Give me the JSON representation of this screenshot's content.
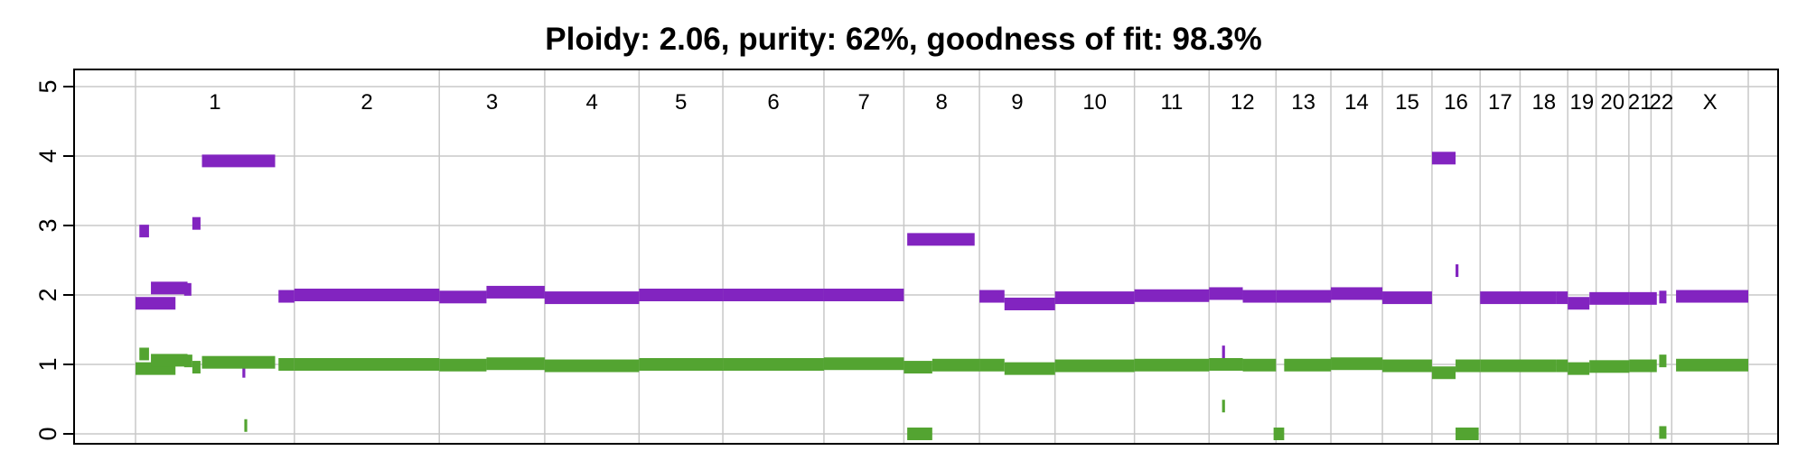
{
  "chart_data": {
    "type": "segment-plot",
    "title": "Ploidy: 2.06, purity: 62%, goodness of fit: 98.3%",
    "xlabel": "",
    "ylabel": "",
    "ylim": [
      0,
      5
    ],
    "yticks": [
      "0",
      "1",
      "2",
      "3",
      "4",
      "5"
    ],
    "grid": true,
    "colors": {
      "total": "#8224c0",
      "minor": "#53a431",
      "grid": "#c8c8c8",
      "axis": "#000000"
    },
    "chromosomes": [
      {
        "name": "1",
        "start": 0,
        "end": 3.3
      },
      {
        "name": "2",
        "start": 3.3,
        "end": 6.31
      },
      {
        "name": "3",
        "start": 6.31,
        "end": 8.5
      },
      {
        "name": "4",
        "start": 8.5,
        "end": 10.46
      },
      {
        "name": "5",
        "start": 10.46,
        "end": 12.2
      },
      {
        "name": "6",
        "start": 12.2,
        "end": 14.3
      },
      {
        "name": "7",
        "start": 14.3,
        "end": 15.96
      },
      {
        "name": "8",
        "start": 15.96,
        "end": 17.53
      },
      {
        "name": "9",
        "start": 17.53,
        "end": 19.1
      },
      {
        "name": "10",
        "start": 19.1,
        "end": 20.75
      },
      {
        "name": "11",
        "start": 20.75,
        "end": 22.3
      },
      {
        "name": "12",
        "start": 22.3,
        "end": 23.69
      },
      {
        "name": "13",
        "start": 23.69,
        "end": 24.83
      },
      {
        "name": "14",
        "start": 24.83,
        "end": 25.9
      },
      {
        "name": "15",
        "start": 25.9,
        "end": 26.93
      },
      {
        "name": "16",
        "start": 26.93,
        "end": 27.93
      },
      {
        "name": "17",
        "start": 27.93,
        "end": 28.76
      },
      {
        "name": "18",
        "start": 28.76,
        "end": 29.75
      },
      {
        "name": "19",
        "start": 29.75,
        "end": 30.34
      },
      {
        "name": "20",
        "start": 30.34,
        "end": 31.02
      },
      {
        "name": "21",
        "start": 31.02,
        "end": 31.48
      },
      {
        "name": "22",
        "start": 31.48,
        "end": 31.91
      },
      {
        "name": "X",
        "start": 31.91,
        "end": 33.5
      }
    ],
    "series": [
      {
        "key": "total",
        "segments": [
          [
            0.0,
            0.83,
            1.88
          ],
          [
            0.08,
            0.28,
            2.92
          ],
          [
            0.32,
            1.08,
            2.1
          ],
          [
            1.01,
            1.16,
            2.08
          ],
          [
            1.18,
            1.35,
            3.03
          ],
          [
            1.38,
            2.9,
            3.93
          ],
          [
            2.22,
            2.28,
            0.9
          ],
          [
            2.97,
            3.3,
            1.98
          ],
          [
            3.3,
            6.31,
            2.0
          ],
          [
            6.31,
            7.29,
            1.97
          ],
          [
            7.29,
            8.5,
            2.04
          ],
          [
            8.5,
            10.46,
            1.96
          ],
          [
            10.46,
            12.2,
            2.0
          ],
          [
            12.2,
            14.3,
            2.0
          ],
          [
            14.3,
            15.96,
            2.0
          ],
          [
            16.03,
            17.43,
            2.8
          ],
          [
            17.53,
            18.05,
            1.98
          ],
          [
            18.05,
            19.1,
            1.87
          ],
          [
            19.1,
            20.75,
            1.96
          ],
          [
            20.75,
            22.3,
            1.99
          ],
          [
            22.3,
            23.0,
            2.02
          ],
          [
            22.57,
            22.63,
            1.18
          ],
          [
            23.0,
            23.69,
            1.98
          ],
          [
            23.69,
            24.83,
            1.98
          ],
          [
            24.83,
            25.9,
            2.02
          ],
          [
            25.9,
            26.93,
            1.96
          ],
          [
            26.93,
            27.42,
            3.97
          ],
          [
            27.42,
            27.48,
            2.35
          ],
          [
            27.93,
            29.51,
            1.96
          ],
          [
            29.51,
            29.75,
            1.96
          ],
          [
            29.75,
            30.2,
            1.88
          ],
          [
            30.2,
            31.03,
            1.95
          ],
          [
            31.03,
            31.6,
            1.95
          ],
          [
            31.65,
            31.8,
            1.97
          ],
          [
            32.0,
            33.5,
            1.98
          ]
        ]
      },
      {
        "key": "minor",
        "segments": [
          [
            0.0,
            0.83,
            0.94
          ],
          [
            0.08,
            0.28,
            1.15
          ],
          [
            0.32,
            1.08,
            1.06
          ],
          [
            1.01,
            1.18,
            1.05
          ],
          [
            1.18,
            1.35,
            0.96
          ],
          [
            1.38,
            2.9,
            1.03
          ],
          [
            2.26,
            2.32,
            0.12
          ],
          [
            2.97,
            3.3,
            1.0
          ],
          [
            3.3,
            6.31,
            1.0
          ],
          [
            6.31,
            7.29,
            0.99
          ],
          [
            7.29,
            8.5,
            1.01
          ],
          [
            8.5,
            10.46,
            0.98
          ],
          [
            10.46,
            12.2,
            1.0
          ],
          [
            12.2,
            14.3,
            1.0
          ],
          [
            14.3,
            15.96,
            1.01
          ],
          [
            15.96,
            16.55,
            0.96
          ],
          [
            16.03,
            16.55,
            0.0
          ],
          [
            16.55,
            17.53,
            0.99
          ],
          [
            17.53,
            18.05,
            0.99
          ],
          [
            18.05,
            19.1,
            0.94
          ],
          [
            19.1,
            20.75,
            0.98
          ],
          [
            20.75,
            22.3,
            0.99
          ],
          [
            22.3,
            23.0,
            1.0
          ],
          [
            22.57,
            22.63,
            0.4
          ],
          [
            23.0,
            23.69,
            0.99
          ],
          [
            23.64,
            23.86,
            0.0
          ],
          [
            23.86,
            24.83,
            0.99
          ],
          [
            24.83,
            25.9,
            1.01
          ],
          [
            25.9,
            26.93,
            0.98
          ],
          [
            26.93,
            27.42,
            0.88
          ],
          [
            27.42,
            27.9,
            0.0
          ],
          [
            27.42,
            27.93,
            0.98
          ],
          [
            27.93,
            29.51,
            0.98
          ],
          [
            29.51,
            29.75,
            0.98
          ],
          [
            29.75,
            30.2,
            0.94
          ],
          [
            30.2,
            31.03,
            0.97
          ],
          [
            31.03,
            31.6,
            0.98
          ],
          [
            31.65,
            31.8,
            1.05
          ],
          [
            31.65,
            31.8,
            0.02
          ],
          [
            32.0,
            33.5,
            0.99
          ]
        ]
      }
    ]
  }
}
